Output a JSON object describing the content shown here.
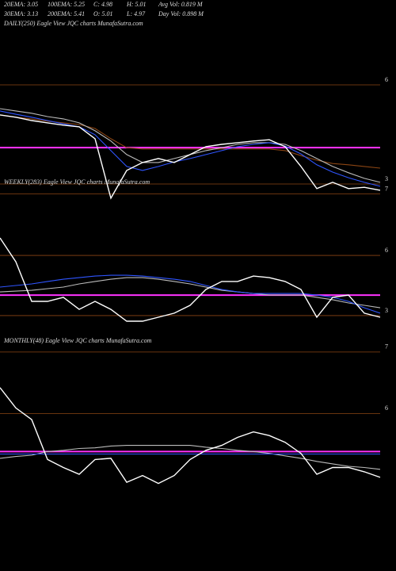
{
  "header": {
    "stats": [
      "20EMA: 3.05",
      "100EMA: 5.25",
      "C: 4.98",
      "H: 5.01",
      "Avg Vol: 0.819 M",
      "30EMA: 3.13",
      "200EMA: 5.41",
      "O: 5.01",
      "L: 4.97",
      "Day Vol: 0.898 M"
    ]
  },
  "chart_data": [
    {
      "type": "line",
      "title": "DAILY(250) Eagle  View  JQC charts MunafaSutra.com",
      "ylim": [
        2.4,
        7.8
      ],
      "yticks": [
        6,
        3,
        {
          "value": 2.7,
          "label": "7"
        }
      ],
      "grid_color": "#8b4513",
      "hline": {
        "value": 4.1,
        "color": "#ff33ff"
      },
      "series": [
        {
          "color": "#8b4513",
          "values": [
            5.09,
            5.02,
            4.97,
            4.9,
            4.85,
            4.8,
            4.68,
            4.37,
            4.1,
            4.06,
            4.06,
            4.06,
            4.06,
            4.06,
            4.06,
            4.06,
            4.06,
            4.06,
            4.01,
            3.86,
            3.72,
            3.62,
            3.58,
            3.53,
            3.48
          ]
        },
        {
          "color": "#bbbbbb",
          "values": [
            5.28,
            5.21,
            5.14,
            5.04,
            4.97,
            4.85,
            4.61,
            4.3,
            3.89,
            3.65,
            3.65,
            3.77,
            3.89,
            4.01,
            4.1,
            4.2,
            4.25,
            4.25,
            4.2,
            4.01,
            3.77,
            3.53,
            3.34,
            3.17,
            3.05
          ]
        },
        {
          "color": "#2f55ff",
          "values": [
            5.21,
            5.11,
            5.02,
            4.92,
            4.82,
            4.73,
            4.49,
            4.01,
            3.53,
            3.41,
            3.53,
            3.67,
            3.77,
            3.89,
            4.01,
            4.13,
            4.2,
            4.25,
            4.15,
            3.91,
            3.58,
            3.36,
            3.19,
            3.05,
            2.93
          ]
        },
        {
          "color": "#ffffff",
          "values": [
            5.09,
            5.02,
            4.92,
            4.85,
            4.78,
            4.73,
            4.37,
            2.57,
            3.41,
            3.65,
            3.77,
            3.65,
            3.89,
            4.13,
            4.2,
            4.25,
            4.3,
            4.34,
            4.13,
            3.53,
            2.86,
            3.05,
            2.86,
            2.9,
            2.81
          ]
        }
      ]
    },
    {
      "type": "line",
      "title": "WEEKLY(283) Eagle  View  JQC charts MunafaSutra.com",
      "ylim": [
        1.93,
        8.65
      ],
      "yticks": [
        6,
        3
      ],
      "grid_color": "#8b4513",
      "hline": {
        "value": 4.02,
        "color": "#ff33ff"
      },
      "series": [
        {
          "color": "#bbbbbb",
          "values": [
            4.18,
            4.22,
            4.26,
            4.34,
            4.42,
            4.58,
            4.7,
            4.81,
            4.89,
            4.89,
            4.81,
            4.7,
            4.58,
            4.42,
            4.26,
            4.18,
            4.1,
            4.02,
            4.02,
            4.02,
            3.91,
            3.79,
            3.63,
            3.51,
            3.39
          ]
        },
        {
          "color": "#2f55ff",
          "values": [
            4.42,
            4.5,
            4.58,
            4.7,
            4.81,
            4.89,
            4.97,
            5.01,
            5.01,
            4.97,
            4.89,
            4.81,
            4.7,
            4.5,
            4.3,
            4.18,
            4.1,
            4.1,
            4.1,
            4.1,
            4.02,
            3.91,
            3.71,
            3.39,
            3.12
          ]
        },
        {
          "color": "#ffffff",
          "values": [
            6.87,
            5.68,
            3.71,
            3.71,
            3.91,
            3.31,
            3.71,
            3.31,
            2.72,
            2.72,
            2.92,
            3.12,
            3.51,
            4.3,
            4.7,
            4.7,
            4.97,
            4.89,
            4.7,
            4.3,
            2.92,
            3.91,
            4.02,
            3.12,
            2.92
          ]
        }
      ]
    },
    {
      "type": "line",
      "title": "MONTHLY(48) Eagle  View  JQC charts MunafaSutra.com",
      "ylim": [
        3.5,
        7.05
      ],
      "yticks": [
        7,
        6
      ],
      "grid_color": "#8b4513",
      "hline": {
        "value": 5.38,
        "color": "#ff33ff"
      },
      "series": [
        {
          "color": "#bbbbbb",
          "values": [
            5.27,
            5.3,
            5.32,
            5.38,
            5.4,
            5.43,
            5.44,
            5.47,
            5.48,
            5.48,
            5.48,
            5.48,
            5.48,
            5.45,
            5.43,
            5.4,
            5.38,
            5.35,
            5.31,
            5.27,
            5.22,
            5.18,
            5.14,
            5.12,
            5.09
          ]
        },
        {
          "color": "#2f55ff",
          "values": [
            5.34,
            5.34,
            5.34,
            5.34,
            5.34,
            5.34,
            5.34,
            5.34,
            5.34,
            5.34,
            5.34,
            5.34,
            5.34,
            5.34,
            5.34,
            5.34,
            5.34,
            5.34,
            5.34,
            5.34,
            5.34,
            5.34,
            5.34,
            5.34,
            5.34
          ]
        },
        {
          "color": "#ffffff",
          "values": [
            6.42,
            6.09,
            5.9,
            5.25,
            5.12,
            5.01,
            5.25,
            5.27,
            4.88,
            4.99,
            4.86,
            4.99,
            5.25,
            5.4,
            5.48,
            5.61,
            5.7,
            5.64,
            5.53,
            5.35,
            5.01,
            5.12,
            5.12,
            5.05,
            4.96
          ]
        }
      ]
    }
  ]
}
